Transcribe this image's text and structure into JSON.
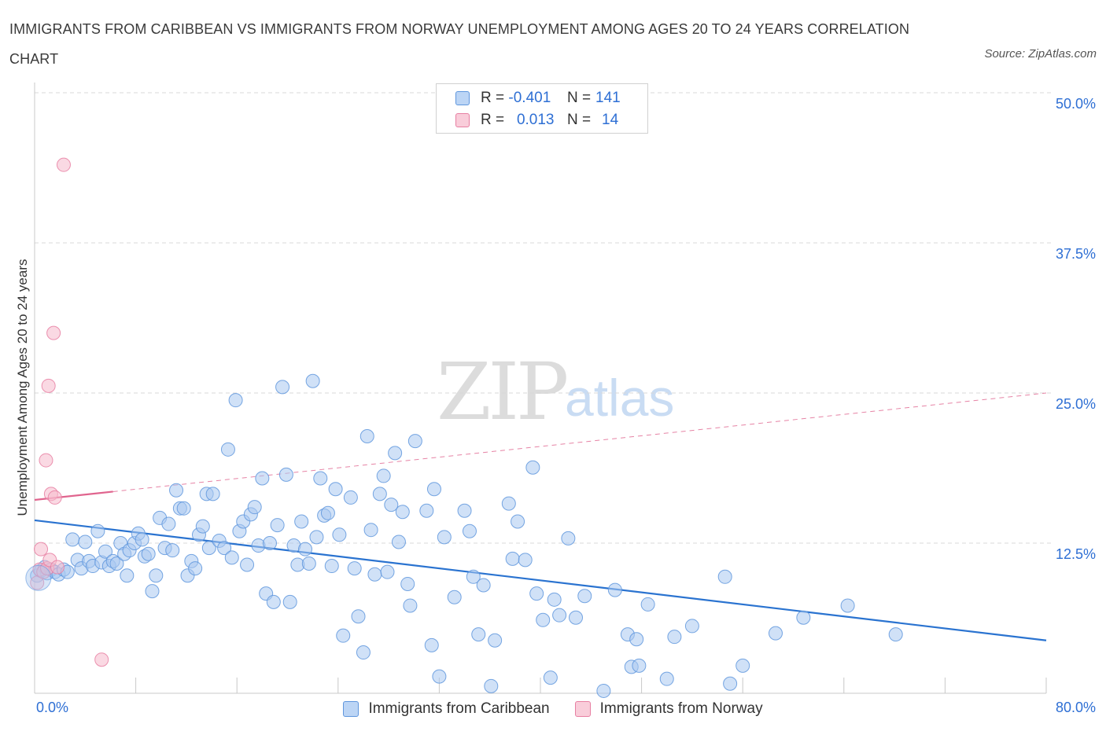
{
  "header": {
    "title": "IMMIGRANTS FROM CARIBBEAN VS IMMIGRANTS FROM NORWAY UNEMPLOYMENT AMONG AGES 20 TO 24 YEARS CORRELATION CHART",
    "source": "Source: ZipAtlas.com"
  },
  "watermark": {
    "zip": "ZIP",
    "atlas": "atlas"
  },
  "colors": {
    "blue_fill": "#a9c8f0",
    "blue_stroke": "#5f96dd",
    "blue_line": "#2a73d0",
    "pink_fill": "#f6b9cc",
    "pink_stroke": "#e77fa2",
    "pink_line": "#e0648e",
    "grid": "#d9d9d9",
    "tick_text": "#2e6fd4"
  },
  "legend_top": {
    "rows": [
      {
        "r_label": "R =",
        "r_value": "-0.401",
        "n_label": "N =",
        "n_value": "141",
        "series": "blue"
      },
      {
        "r_label": "R =",
        "r_value": "0.013",
        "n_label": "N =",
        "n_value": "14",
        "series": "pink"
      }
    ]
  },
  "chart_data": {
    "type": "scatter",
    "title": "IMMIGRANTS FROM CARIBBEAN VS IMMIGRANTS FROM NORWAY UNEMPLOYMENT AMONG AGES 20 TO 24 YEARS CORRELATION CHART",
    "xlabel": "",
    "ylabel": "Unemployment Among Ages 20 to 24 years",
    "xlim": [
      0,
      80
    ],
    "ylim": [
      0,
      50
    ],
    "x_tick_labels": [
      "0.0%",
      "80.0%"
    ],
    "y_tick_labels": [
      "12.5%",
      "25.0%",
      "37.5%",
      "50.0%"
    ],
    "y_ticks": [
      12.5,
      25,
      37.5,
      50
    ],
    "grid": true,
    "legend_position": "bottom",
    "series": [
      {
        "name": "Immigrants from Caribbean",
        "color": "#a9c8f0",
        "trend": {
          "x": [
            0,
            80
          ],
          "y": [
            14.4,
            4.4
          ]
        },
        "points": [
          [
            0.2,
            9.8
          ],
          [
            0.5,
            10.2
          ],
          [
            0.8,
            10.5
          ],
          [
            1.0,
            10.0
          ],
          [
            1.3,
            10.3
          ],
          [
            1.6,
            10.1
          ],
          [
            1.9,
            9.9
          ],
          [
            2.3,
            10.3
          ],
          [
            2.6,
            10.1
          ],
          [
            3.0,
            12.8
          ],
          [
            3.4,
            11.1
          ],
          [
            3.7,
            10.4
          ],
          [
            4.0,
            12.6
          ],
          [
            4.3,
            11.0
          ],
          [
            4.6,
            10.6
          ],
          [
            5.0,
            13.5
          ],
          [
            5.3,
            10.9
          ],
          [
            5.6,
            11.8
          ],
          [
            5.9,
            10.6
          ],
          [
            6.2,
            11.0
          ],
          [
            6.5,
            10.8
          ],
          [
            6.8,
            12.5
          ],
          [
            7.1,
            11.6
          ],
          [
            7.3,
            9.8
          ],
          [
            7.5,
            11.9
          ],
          [
            7.9,
            12.5
          ],
          [
            8.2,
            13.3
          ],
          [
            8.5,
            12.8
          ],
          [
            8.7,
            11.4
          ],
          [
            9.0,
            11.6
          ],
          [
            9.3,
            8.5
          ],
          [
            9.6,
            9.8
          ],
          [
            9.9,
            14.6
          ],
          [
            10.3,
            12.1
          ],
          [
            10.6,
            14.1
          ],
          [
            10.9,
            11.9
          ],
          [
            11.2,
            16.9
          ],
          [
            11.5,
            15.4
          ],
          [
            11.8,
            15.4
          ],
          [
            12.1,
            9.8
          ],
          [
            12.4,
            11.0
          ],
          [
            12.7,
            10.4
          ],
          [
            13.0,
            13.2
          ],
          [
            13.3,
            13.9
          ],
          [
            13.6,
            16.6
          ],
          [
            13.8,
            12.1
          ],
          [
            14.1,
            16.6
          ],
          [
            14.6,
            12.7
          ],
          [
            15.0,
            12.1
          ],
          [
            15.3,
            20.3
          ],
          [
            15.6,
            11.3
          ],
          [
            15.9,
            24.4
          ],
          [
            16.2,
            13.5
          ],
          [
            16.5,
            14.3
          ],
          [
            16.8,
            10.7
          ],
          [
            17.1,
            14.9
          ],
          [
            17.4,
            15.5
          ],
          [
            17.7,
            12.3
          ],
          [
            18.0,
            17.9
          ],
          [
            18.3,
            8.3
          ],
          [
            18.6,
            12.5
          ],
          [
            18.9,
            7.6
          ],
          [
            19.2,
            14.0
          ],
          [
            19.6,
            25.5
          ],
          [
            19.9,
            18.2
          ],
          [
            20.2,
            7.6
          ],
          [
            20.5,
            12.3
          ],
          [
            20.8,
            10.7
          ],
          [
            21.1,
            14.3
          ],
          [
            21.4,
            12.0
          ],
          [
            21.7,
            10.8
          ],
          [
            22.0,
            26.0
          ],
          [
            22.3,
            13.0
          ],
          [
            22.6,
            17.9
          ],
          [
            22.9,
            14.8
          ],
          [
            23.2,
            15.0
          ],
          [
            23.5,
            10.6
          ],
          [
            23.8,
            17.0
          ],
          [
            24.1,
            13.2
          ],
          [
            24.4,
            4.8
          ],
          [
            25.0,
            16.3
          ],
          [
            25.3,
            10.4
          ],
          [
            25.6,
            6.4
          ],
          [
            26.0,
            3.4
          ],
          [
            26.3,
            21.4
          ],
          [
            26.6,
            13.6
          ],
          [
            26.9,
            9.9
          ],
          [
            27.3,
            16.6
          ],
          [
            27.6,
            18.1
          ],
          [
            27.9,
            10.1
          ],
          [
            28.2,
            15.7
          ],
          [
            28.5,
            20.0
          ],
          [
            28.8,
            12.6
          ],
          [
            29.1,
            15.1
          ],
          [
            29.5,
            9.1
          ],
          [
            29.7,
            7.3
          ],
          [
            30.1,
            21.0
          ],
          [
            31.0,
            15.2
          ],
          [
            31.4,
            4.0
          ],
          [
            31.6,
            17.0
          ],
          [
            32.0,
            1.4
          ],
          [
            32.4,
            13.0
          ],
          [
            33.2,
            8.0
          ],
          [
            34.0,
            15.2
          ],
          [
            34.4,
            13.5
          ],
          [
            34.7,
            9.7
          ],
          [
            35.1,
            4.9
          ],
          [
            35.5,
            9.0
          ],
          [
            36.1,
            0.6
          ],
          [
            36.4,
            4.4
          ],
          [
            37.5,
            15.8
          ],
          [
            37.8,
            11.2
          ],
          [
            38.2,
            14.3
          ],
          [
            38.8,
            11.1
          ],
          [
            39.4,
            18.8
          ],
          [
            39.7,
            8.3
          ],
          [
            40.2,
            6.1
          ],
          [
            40.8,
            1.3
          ],
          [
            41.1,
            7.8
          ],
          [
            41.5,
            6.5
          ],
          [
            42.2,
            12.9
          ],
          [
            42.8,
            6.3
          ],
          [
            43.5,
            8.1
          ],
          [
            45.9,
            8.6
          ],
          [
            46.9,
            4.9
          ],
          [
            47.2,
            2.2
          ],
          [
            47.6,
            4.5
          ],
          [
            47.8,
            2.3
          ],
          [
            48.5,
            7.4
          ],
          [
            50.0,
            1.2
          ],
          [
            50.6,
            4.7
          ],
          [
            52.0,
            5.6
          ],
          [
            54.6,
            9.7
          ],
          [
            55.0,
            0.8
          ],
          [
            56.0,
            2.3
          ],
          [
            58.6,
            5.0
          ],
          [
            60.8,
            6.3
          ],
          [
            64.3,
            7.3
          ],
          [
            68.1,
            4.9
          ],
          [
            45.0,
            0.2
          ]
        ]
      },
      {
        "name": "Immigrants from Norway",
        "color": "#f6b9cc",
        "trend": {
          "x": [
            0,
            80
          ],
          "y": [
            16.1,
            25.0
          ],
          "solid_until_x": 6.2
        },
        "points": [
          [
            0.2,
            9.2
          ],
          [
            0.4,
            10.3
          ],
          [
            0.5,
            12.0
          ],
          [
            0.7,
            10.1
          ],
          [
            0.9,
            19.4
          ],
          [
            1.0,
            10.4
          ],
          [
            1.1,
            25.6
          ],
          [
            1.2,
            11.1
          ],
          [
            1.3,
            16.6
          ],
          [
            1.5,
            30.0
          ],
          [
            1.6,
            16.3
          ],
          [
            1.8,
            10.5
          ],
          [
            2.3,
            44.0
          ],
          [
            5.3,
            2.8
          ]
        ]
      }
    ]
  },
  "legend_bottom": {
    "items": [
      {
        "label": "Immigrants from Caribbean"
      },
      {
        "label": "Immigrants from Norway"
      }
    ]
  }
}
